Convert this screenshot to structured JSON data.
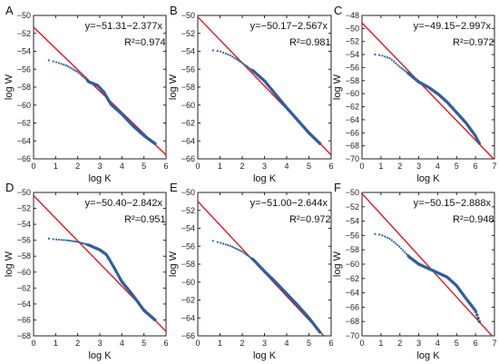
{
  "colors": {
    "fit_line": "#e8141b",
    "data_points": "#2e5f9e",
    "axes": "#222222"
  },
  "chart_data": [
    {
      "type": "scatter",
      "panel_label": "A",
      "xlabel": "log K",
      "ylabel": "log W",
      "xlim": [
        0,
        6
      ],
      "ylim": [
        -66,
        -50
      ],
      "xticks": [
        0,
        1,
        2,
        3,
        4,
        5,
        6
      ],
      "yticks": [
        -66,
        -64,
        -62,
        -60,
        -58,
        -56,
        -54,
        -52,
        -50
      ],
      "equation": "y=−51.31−2.377x",
      "r2_text": "R²=0.974",
      "fit": {
        "intercept": -51.31,
        "slope": -2.377
      },
      "x_range": [
        0.69,
        5.5
      ],
      "curve_x": [
        0.69,
        1.0,
        1.5,
        2.0,
        2.5,
        2.9,
        3.2,
        3.5,
        4.0,
        4.5,
        5.0,
        5.5
      ],
      "curve_y": [
        -55.0,
        -55.2,
        -55.6,
        -56.3,
        -57.4,
        -57.8,
        -58.6,
        -59.9,
        -61.0,
        -62.3,
        -63.4,
        -64.3
      ]
    },
    {
      "type": "scatter",
      "panel_label": "B",
      "xlabel": "log K",
      "ylabel": "log W",
      "xlim": [
        0,
        6
      ],
      "ylim": [
        -66,
        -50
      ],
      "xticks": [
        0,
        1,
        2,
        3,
        4,
        5,
        6
      ],
      "yticks": [
        -66,
        -64,
        -62,
        -60,
        -58,
        -56,
        -54,
        -52,
        -50
      ],
      "equation": "y=−50.17−2.567x",
      "r2_text": "R²=0.981",
      "fit": {
        "intercept": -50.17,
        "slope": -2.567
      },
      "x_range": [
        0.69,
        5.5
      ],
      "curve_x": [
        0.69,
        1.0,
        1.5,
        2.0,
        2.5,
        3.0,
        3.5,
        4.0,
        4.5,
        5.0,
        5.5
      ],
      "curve_y": [
        -53.9,
        -54.0,
        -54.5,
        -55.3,
        -56.2,
        -57.3,
        -58.8,
        -60.3,
        -61.7,
        -63.1,
        -64.3
      ]
    },
    {
      "type": "scatter",
      "panel_label": "C",
      "xlabel": "log K",
      "ylabel": "log W",
      "xlim": [
        0,
        7
      ],
      "ylim": [
        -70,
        -48
      ],
      "xticks": [
        0,
        1,
        2,
        3,
        4,
        5,
        6,
        7
      ],
      "yticks": [
        -70,
        -68,
        -66,
        -64,
        -62,
        -60,
        -58,
        -56,
        -54,
        -52,
        -50,
        -48
      ],
      "equation": "y=−49.15−2.997x",
      "r2_text": "R²=0.972",
      "fit": {
        "intercept": -49.15,
        "slope": -2.997
      },
      "x_range": [
        0.69,
        6.2
      ],
      "curve_x": [
        0.69,
        1.0,
        1.5,
        2.0,
        2.5,
        3.0,
        3.5,
        4.0,
        4.5,
        5.0,
        5.5,
        6.0,
        6.2
      ],
      "curve_y": [
        -54.0,
        -54.1,
        -54.6,
        -55.9,
        -57.0,
        -58.2,
        -59.0,
        -60.0,
        -61.3,
        -62.9,
        -64.5,
        -66.5,
        -67.6
      ]
    },
    {
      "type": "scatter",
      "panel_label": "D",
      "xlabel": "log K",
      "ylabel": "log W",
      "xlim": [
        0,
        6
      ],
      "ylim": [
        -68,
        -50
      ],
      "xticks": [
        0,
        1,
        2,
        3,
        4,
        5,
        6
      ],
      "yticks": [
        -68,
        -66,
        -64,
        -62,
        -60,
        -58,
        -56,
        -54,
        -52,
        -50
      ],
      "equation": "y=−50.40−2.842x",
      "r2_text": "R²=0.951",
      "fit": {
        "intercept": -50.4,
        "slope": -2.842
      },
      "x_range": [
        0.69,
        5.5
      ],
      "curve_x": [
        0.69,
        1.0,
        1.5,
        2.0,
        2.5,
        3.0,
        3.3,
        3.6,
        4.0,
        4.5,
        5.0,
        5.5
      ],
      "curve_y": [
        -55.8,
        -55.9,
        -56.0,
        -56.2,
        -56.6,
        -57.2,
        -57.8,
        -59.2,
        -61.2,
        -62.9,
        -64.8,
        -66.0
      ]
    },
    {
      "type": "scatter",
      "panel_label": "E",
      "xlabel": "log K",
      "ylabel": "log W",
      "xlim": [
        0,
        6
      ],
      "ylim": [
        -66,
        -50
      ],
      "xticks": [
        0,
        1,
        2,
        3,
        4,
        5,
        6
      ],
      "yticks": [
        -66,
        -64,
        -62,
        -60,
        -58,
        -56,
        -54,
        -52,
        -50
      ],
      "equation": "y=−51.00−2.644x",
      "r2_text": "R²=0.972",
      "fit": {
        "intercept": -51.0,
        "slope": -2.644
      },
      "x_range": [
        0.69,
        5.5
      ],
      "curve_x": [
        0.69,
        1.0,
        1.5,
        2.0,
        2.5,
        3.0,
        3.5,
        4.0,
        4.5,
        5.0,
        5.5
      ],
      "curve_y": [
        -55.4,
        -55.6,
        -56.0,
        -56.6,
        -57.5,
        -58.8,
        -60.0,
        -61.3,
        -62.6,
        -64.0,
        -65.6
      ]
    },
    {
      "type": "scatter",
      "panel_label": "F",
      "xlabel": "log K",
      "ylabel": "log W",
      "xlim": [
        0,
        7
      ],
      "ylim": [
        -70,
        -50
      ],
      "xticks": [
        0,
        1,
        2,
        3,
        4,
        5,
        6,
        7
      ],
      "yticks": [
        -70,
        -68,
        -66,
        -64,
        -62,
        -60,
        -58,
        -56,
        -54,
        -52,
        -50
      ],
      "equation": "y=−50.15−2.888x",
      "r2_text": "R²=0.948",
      "fit": {
        "intercept": -50.15,
        "slope": -2.888
      },
      "x_range": [
        0.69,
        6.2
      ],
      "curve_x": [
        0.69,
        1.0,
        1.5,
        2.0,
        2.5,
        3.0,
        3.5,
        4.0,
        4.5,
        5.0,
        5.5,
        6.0,
        6.2
      ],
      "curve_y": [
        -55.8,
        -55.9,
        -56.5,
        -57.6,
        -59.0,
        -60.0,
        -60.6,
        -61.2,
        -61.8,
        -63.0,
        -64.8,
        -66.5,
        -68.0
      ]
    }
  ]
}
